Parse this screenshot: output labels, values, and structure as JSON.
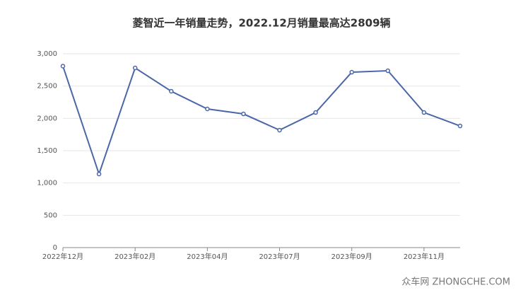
{
  "chart_data": {
    "type": "line",
    "title": "菱智近一年销量走势，2022.12月销量最高达2809辆",
    "categories": [
      "2022年12月",
      null,
      "2023年02月",
      null,
      "2023年04月",
      null,
      "2023年07月",
      null,
      "2023年09月",
      null,
      "2023年11月",
      null
    ],
    "series": [
      {
        "name": "销量",
        "color": "#4a67a8",
        "values": [
          2809,
          1139,
          2781,
          2420,
          2146,
          2069,
          1818,
          2091,
          2715,
          2737,
          2091,
          1883
        ]
      }
    ],
    "ylim": [
      0,
      3000
    ],
    "yticks": [
      0,
      500,
      {
        "value": 1000,
        "label": "1,000"
      },
      {
        "value": 1500,
        "label": "1,500"
      },
      {
        "value": 2000,
        "label": "2,000"
      },
      {
        "value": 2500,
        "label": "2,500"
      },
      {
        "value": 3000,
        "label": "3,000"
      }
    ],
    "grid": true,
    "watermark": "众车网 ZHONGCHE.COM"
  }
}
